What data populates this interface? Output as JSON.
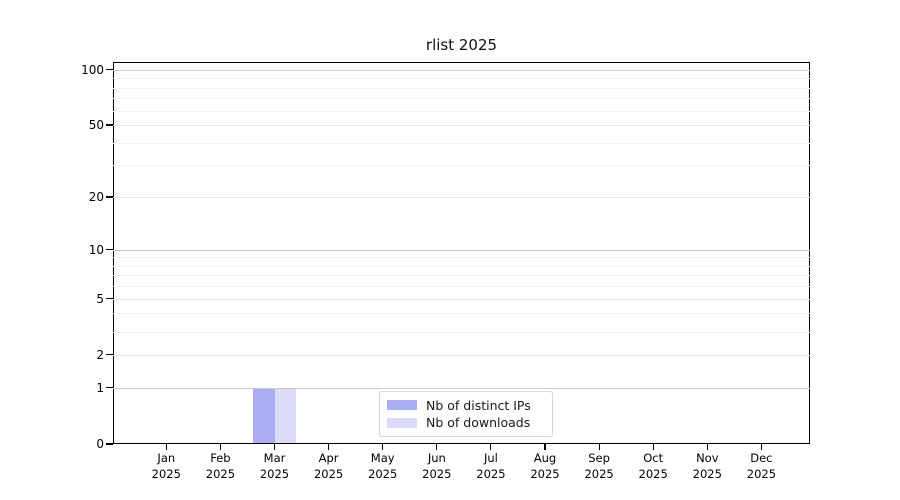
{
  "chart_data": {
    "type": "bar",
    "title": "rlist 2025",
    "categories": [
      "Jan",
      "Feb",
      "Mar",
      "Apr",
      "May",
      "Jun",
      "Jul",
      "Aug",
      "Sep",
      "Oct",
      "Nov",
      "Dec"
    ],
    "category_year": "2025",
    "series": [
      {
        "name": "Nb of distinct IPs",
        "color": "#aaaef5",
        "values": [
          0,
          0,
          1,
          0,
          0,
          0,
          0,
          0,
          0,
          0,
          0,
          0
        ]
      },
      {
        "name": "Nb of downloads",
        "color": "#dcdcf8",
        "values": [
          0,
          0,
          1,
          0,
          0,
          0,
          0,
          0,
          0,
          0,
          0,
          0
        ]
      }
    ],
    "y_scale": "log1p",
    "y_ticks": [
      0,
      1,
      2,
      5,
      10,
      20,
      50,
      100
    ],
    "y_decade_ticks": [
      1,
      10,
      100
    ],
    "y_minor_gridlines": [
      3,
      4,
      6,
      7,
      8,
      9,
      30,
      40,
      60,
      70,
      80,
      90
    ],
    "ylim": [
      0,
      110
    ],
    "xlabel": "",
    "ylabel": "",
    "grid": "horizontal",
    "legend": {
      "position": "bottom-center-inside",
      "items": [
        "Nb of distinct IPs",
        "Nb of downloads"
      ]
    }
  },
  "colors": {
    "axis": "#000000",
    "decade_gridline": "#cbcbcb",
    "labeled_gridline": "#e8e8e8",
    "minor_gridline": "#f3f3f3",
    "legend_border": "#d5d5d5",
    "background": "#ffffff"
  }
}
